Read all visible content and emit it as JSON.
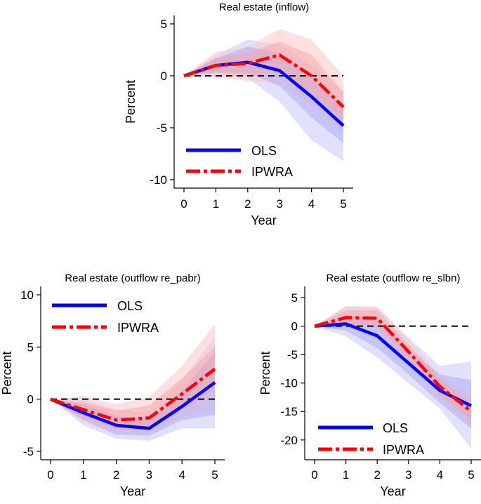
{
  "colors": {
    "ols": "#0000ff",
    "ipwra": "#ff0000",
    "ols_band_outer": "#c9c9ff",
    "ols_band_inner": "#a9a9f5",
    "ipwra_band_outer": "#ffc6c6",
    "ipwra_band_inner": "#f7a3a3",
    "zero_line": "#000000"
  },
  "chart_data": [
    {
      "type": "line",
      "title": "Real estate (inflow)",
      "xlabel": "Year",
      "ylabel": "Percent",
      "x": [
        0,
        1,
        2,
        3,
        4,
        5
      ],
      "xticks": [
        "0",
        "1",
        "2",
        "3",
        "4",
        "5"
      ],
      "yticks": [
        5,
        0,
        -5,
        -10
      ],
      "ytick_labels": [
        "5",
        "0",
        "-5",
        "-10"
      ],
      "xlim": [
        0,
        5
      ],
      "ylim": [
        -10,
        5
      ],
      "legend": {
        "position": "bottom-left",
        "labels": [
          "OLS",
          "IPWRA"
        ]
      },
      "series": [
        {
          "name": "OLS",
          "values": [
            0,
            1.0,
            1.3,
            0.5,
            -2.0,
            -4.8
          ],
          "ci90": [
            [
              0,
              0
            ],
            [
              0.3,
              1.7
            ],
            [
              0.3,
              2.8
            ],
            [
              -1.0,
              2.2
            ],
            [
              -4.0,
              0.0
            ],
            [
              -6.5,
              -3.0
            ]
          ],
          "ci95": [
            [
              0,
              0
            ],
            [
              0,
              2.0
            ],
            [
              -0.2,
              3.5
            ],
            [
              -2.5,
              3.0
            ],
            [
              -6.2,
              1.0
            ],
            [
              -8.2,
              -1.5
            ]
          ]
        },
        {
          "name": "IPWRA",
          "values": [
            0,
            1.0,
            1.2,
            2.0,
            0.0,
            -3.0
          ],
          "ci90": [
            [
              0,
              0
            ],
            [
              0.3,
              1.7
            ],
            [
              0,
              2.2
            ],
            [
              0.3,
              3.3
            ],
            [
              -1.6,
              2.0
            ],
            [
              -4.3,
              -1.5
            ]
          ],
          "ci95": [
            [
              0,
              0
            ],
            [
              -0.2,
              2.3
            ],
            [
              -0.5,
              2.8
            ],
            [
              -0.8,
              4.5
            ],
            [
              -2.8,
              3.5
            ],
            [
              -5.5,
              0.0
            ]
          ]
        }
      ]
    },
    {
      "type": "line",
      "title": "Real estate (outflow re_pabr)",
      "xlabel": "Year",
      "ylabel": "Percent",
      "x": [
        0,
        1,
        2,
        3,
        4,
        5
      ],
      "xticks": [
        "0",
        "1",
        "2",
        "3",
        "4",
        "5"
      ],
      "yticks": [
        10,
        5,
        0,
        -5
      ],
      "ytick_labels": [
        "10",
        "5",
        "0",
        "-5"
      ],
      "xlim": [
        0,
        5
      ],
      "ylim": [
        -5,
        10
      ],
      "legend": {
        "position": "top-left",
        "labels": [
          "OLS",
          "IPWRA"
        ]
      },
      "series": [
        {
          "name": "OLS",
          "values": [
            0,
            -1.3,
            -2.5,
            -2.8,
            -0.7,
            1.6
          ],
          "ci90": [
            [
              0,
              0
            ],
            [
              -2.0,
              -0.5
            ],
            [
              -3.4,
              -1.6
            ],
            [
              -3.5,
              -1.9
            ],
            [
              -2.0,
              0.8
            ],
            [
              -1.5,
              4.5
            ]
          ],
          "ci95": [
            [
              0,
              0
            ],
            [
              -2.5,
              0.0
            ],
            [
              -3.8,
              -1.0
            ],
            [
              -4.0,
              -1.3
            ],
            [
              -2.8,
              1.8
            ],
            [
              -2.8,
              6.0
            ]
          ]
        },
        {
          "name": "IPWRA",
          "values": [
            0,
            -1.0,
            -2.0,
            -1.8,
            0.5,
            2.9
          ],
          "ci90": [
            [
              0,
              0
            ],
            [
              -1.7,
              -0.3
            ],
            [
              -2.8,
              -1.1
            ],
            [
              -2.8,
              -0.6
            ],
            [
              -1.0,
              2.0
            ],
            [
              1.0,
              5.0
            ]
          ],
          "ci95": [
            [
              0,
              0
            ],
            [
              -2.2,
              0.3
            ],
            [
              -3.4,
              -0.5
            ],
            [
              -3.3,
              0.2
            ],
            [
              -1.7,
              3.2
            ],
            [
              -1.0,
              7.2
            ]
          ]
        }
      ]
    },
    {
      "type": "line",
      "title": "Real estate (outflow re_slbn)",
      "xlabel": "Year",
      "ylabel": "Percent",
      "x": [
        0,
        1,
        2,
        3,
        4,
        5
      ],
      "xticks": [
        "0",
        "1",
        "2",
        "3",
        "4",
        "5"
      ],
      "yticks": [
        5,
        0,
        -5,
        -10,
        -15,
        -20
      ],
      "ytick_labels": [
        "5",
        "0",
        "-5",
        "-10",
        "-15",
        "-20"
      ],
      "xlim": [
        0,
        5
      ],
      "ylim": [
        -22,
        5.5
      ],
      "legend": {
        "position": "bottom-left",
        "labels": [
          "OLS",
          "IPWRA"
        ]
      },
      "series": [
        {
          "name": "OLS",
          "values": [
            0,
            0.4,
            -1.7,
            -6.5,
            -11.3,
            -14.0
          ],
          "ci90": [
            [
              0,
              0
            ],
            [
              -0.8,
              2.0
            ],
            [
              -3.8,
              1.0
            ],
            [
              -8.5,
              -4.0
            ],
            [
              -13.5,
              -8.5
            ],
            [
              -18.0,
              -9.5
            ]
          ],
          "ci95": [
            [
              0,
              0
            ],
            [
              -1.8,
              3.5
            ],
            [
              -5.5,
              3.2
            ],
            [
              -10.0,
              -2.0
            ],
            [
              -14.5,
              -7.0
            ],
            [
              -21.5,
              -6.2
            ]
          ]
        },
        {
          "name": "IPWRA",
          "values": [
            0,
            1.5,
            1.4,
            -4.5,
            -10.6,
            -15.0
          ],
          "ci90": [
            [
              0,
              0
            ],
            [
              0.3,
              2.8
            ],
            [
              0.2,
              2.8
            ],
            [
              -5.8,
              -3.2
            ],
            [
              -12.2,
              -9.3
            ],
            [
              -16.5,
              -13.5
            ]
          ],
          "ci95": [
            [
              0,
              0
            ],
            [
              -0.4,
              3.5
            ],
            [
              -0.3,
              3.5
            ],
            [
              -6.8,
              -2.2
            ],
            [
              -12.8,
              -8.5
            ],
            [
              -17.5,
              -12.5
            ]
          ]
        }
      ]
    }
  ]
}
